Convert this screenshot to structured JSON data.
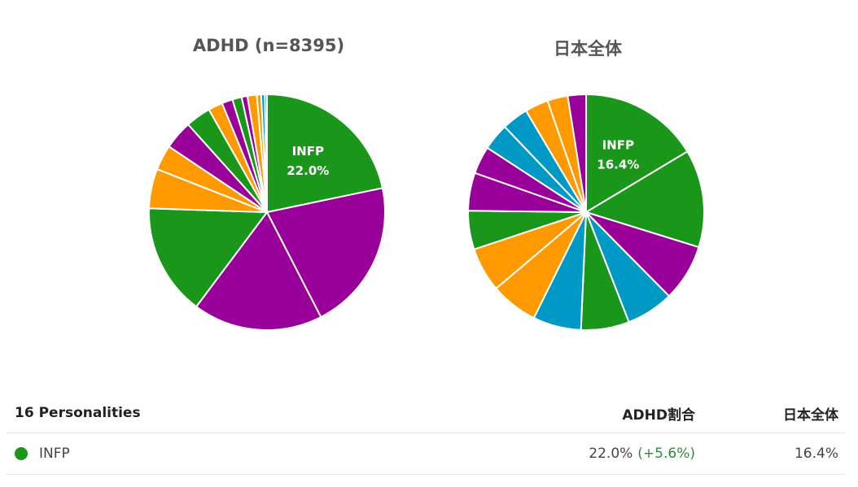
{
  "chart_data": [
    {
      "type": "pie",
      "title": "ADHD (n=8395)",
      "highlight_label": {
        "name": "INFP",
        "value": "22.0%"
      },
      "slices": [
        {
          "value": 22.0,
          "color": "#1a961a"
        },
        {
          "value": 21.0,
          "color": "#990099"
        },
        {
          "value": 18.0,
          "color": "#990099"
        },
        {
          "value": 15.5,
          "color": "#1a961a"
        },
        {
          "value": 5.5,
          "color": "#ff9900"
        },
        {
          "value": 3.5,
          "color": "#ff9900"
        },
        {
          "value": 4.0,
          "color": "#990099"
        },
        {
          "value": 3.5,
          "color": "#1a961a"
        },
        {
          "value": 2.0,
          "color": "#ff9900"
        },
        {
          "value": 1.5,
          "color": "#990099"
        },
        {
          "value": 1.3,
          "color": "#1a961a"
        },
        {
          "value": 0.8,
          "color": "#990099"
        },
        {
          "value": 1.3,
          "color": "#ff9900"
        },
        {
          "value": 0.6,
          "color": "#ff9900"
        },
        {
          "value": 0.5,
          "color": "#0099c6"
        },
        {
          "value": 0.3,
          "color": "#0099c6"
        }
      ]
    },
    {
      "type": "pie",
      "title": "日本全体",
      "highlight_label": {
        "name": "INFP",
        "value": "16.4%"
      },
      "slices": [
        {
          "value": 16.4,
          "color": "#1a961a"
        },
        {
          "value": 13.4,
          "color": "#1a961a"
        },
        {
          "value": 7.8,
          "color": "#990099"
        },
        {
          "value": 6.5,
          "color": "#0099c6"
        },
        {
          "value": 6.6,
          "color": "#1a961a"
        },
        {
          "value": 6.6,
          "color": "#0099c6"
        },
        {
          "value": 6.5,
          "color": "#ff9900"
        },
        {
          "value": 6.1,
          "color": "#ff9900"
        },
        {
          "value": 5.3,
          "color": "#1a961a"
        },
        {
          "value": 5.2,
          "color": "#990099"
        },
        {
          "value": 3.8,
          "color": "#990099"
        },
        {
          "value": 3.7,
          "color": "#0099c6"
        },
        {
          "value": 3.6,
          "color": "#0099c6"
        },
        {
          "value": 3.2,
          "color": "#ff9900"
        },
        {
          "value": 2.8,
          "color": "#ff9900"
        },
        {
          "value": 2.5,
          "color": "#990099"
        }
      ]
    }
  ],
  "table": {
    "headers": {
      "name": "16 Personalities",
      "adhd": "ADHD割合",
      "japan": "日本全体"
    },
    "rows": [
      {
        "name": "INFP",
        "dot_color": "#1a961a",
        "adhd": "22.0%",
        "diff": "(+5.6%)",
        "japan": "16.4%"
      }
    ]
  }
}
